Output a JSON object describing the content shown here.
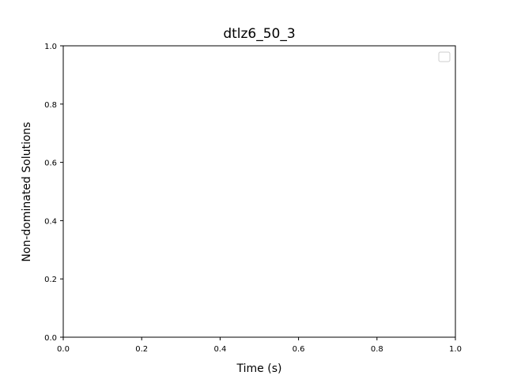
{
  "chart_data": {
    "type": "line",
    "title": "dtlz6_50_3",
    "xlabel": "Time (s)",
    "ylabel": "Non-dominated Solutions",
    "xlim": [
      0.0,
      1.0
    ],
    "ylim": [
      0.0,
      1.0
    ],
    "xticks": [
      "0.0",
      "0.2",
      "0.4",
      "0.6",
      "0.8",
      "1.0"
    ],
    "yticks": [
      "0.0",
      "0.2",
      "0.4",
      "0.6",
      "0.8",
      "1.0"
    ],
    "series": [],
    "legend": {
      "placement": "top-right",
      "entries": []
    },
    "grid": false
  }
}
